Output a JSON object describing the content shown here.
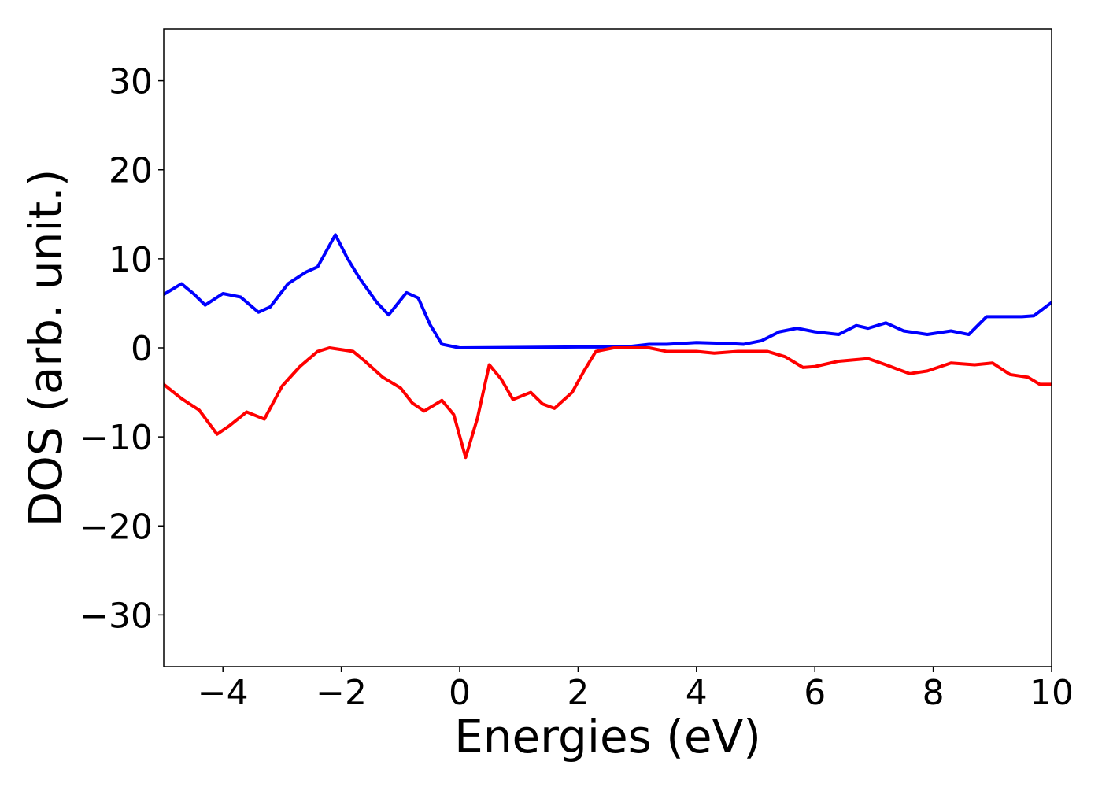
{
  "chart_data": {
    "type": "line",
    "xlabel": "Energies (eV)",
    "ylabel": "DOS (arb. unit.)",
    "xlim": [
      -5,
      10
    ],
    "ylim": [
      -35.8,
      35.8
    ],
    "xticks": [
      {
        "value": -4,
        "label": "−4"
      },
      {
        "value": -2,
        "label": "−2"
      },
      0,
      2,
      4,
      6,
      8,
      10
    ],
    "yticks": [
      {
        "value": -30,
        "label": "−30"
      },
      {
        "value": -20,
        "label": "−20"
      },
      {
        "value": -10,
        "label": "−10"
      },
      0,
      10,
      20,
      30
    ],
    "grid": false,
    "series": [
      {
        "color": "#0000ff",
        "x": [
          -5,
          -4.7,
          -4.5,
          -4.3,
          -4.0,
          -3.7,
          -3.4,
          -3.2,
          -2.9,
          -2.6,
          -2.4,
          -2.1,
          -1.9,
          -1.7,
          -1.4,
          -1.2,
          -0.9,
          -0.7,
          -0.5,
          -0.3,
          0,
          2,
          2.8,
          3.2,
          3.5,
          4.0,
          4.5,
          4.8,
          5.1,
          5.4,
          5.7,
          6.0,
          6.4,
          6.7,
          6.9,
          7.2,
          7.5,
          7.9,
          8.3,
          8.6,
          8.9,
          9.2,
          9.5,
          9.7,
          10
        ],
        "values": [
          6.0,
          7.2,
          6.1,
          4.8,
          6.1,
          5.7,
          4.0,
          4.6,
          7.2,
          8.5,
          9.1,
          12.7,
          10.1,
          7.9,
          5.1,
          3.7,
          6.2,
          5.6,
          2.6,
          0.4,
          0,
          0.1,
          0.1,
          0.4,
          0.4,
          0.6,
          0.5,
          0.4,
          0.8,
          1.8,
          2.2,
          1.8,
          1.5,
          2.5,
          2.2,
          2.8,
          1.9,
          1.5,
          1.9,
          1.5,
          3.5,
          3.5,
          3.5,
          3.6,
          5.1
        ]
      },
      {
        "color": "#ff0000",
        "x": [
          -5,
          -4.7,
          -4.4,
          -4.1,
          -3.9,
          -3.6,
          -3.3,
          -3.0,
          -2.7,
          -2.4,
          -2.2,
          -1.8,
          -1.6,
          -1.3,
          -1.0,
          -0.8,
          -0.6,
          -0.3,
          -0.1,
          0.1,
          0.3,
          0.5,
          0.7,
          0.9,
          1.2,
          1.4,
          1.6,
          1.9,
          2.1,
          2.3,
          2.6,
          3.2,
          3.5,
          4.0,
          4.3,
          4.7,
          5.2,
          5.5,
          5.8,
          6.0,
          6.4,
          6.9,
          7.2,
          7.6,
          7.9,
          8.3,
          8.7,
          9.0,
          9.3,
          9.6,
          9.8,
          10
        ],
        "values": [
          -4.1,
          -5.7,
          -7.0,
          -9.7,
          -8.8,
          -7.2,
          -8.0,
          -4.3,
          -2.1,
          -0.4,
          0,
          -0.4,
          -1.5,
          -3.3,
          -4.5,
          -6.2,
          -7.1,
          -5.9,
          -7.5,
          -12.3,
          -7.9,
          -1.9,
          -3.5,
          -5.8,
          -5.0,
          -6.3,
          -6.8,
          -5.0,
          -2.6,
          -0.4,
          0,
          0,
          -0.4,
          -0.4,
          -0.6,
          -0.4,
          -0.4,
          -1.0,
          -2.2,
          -2.1,
          -1.5,
          -1.2,
          -1.9,
          -2.9,
          -2.6,
          -1.7,
          -1.9,
          -1.7,
          -3.0,
          -3.3,
          -4.1,
          -4.1
        ]
      }
    ]
  }
}
